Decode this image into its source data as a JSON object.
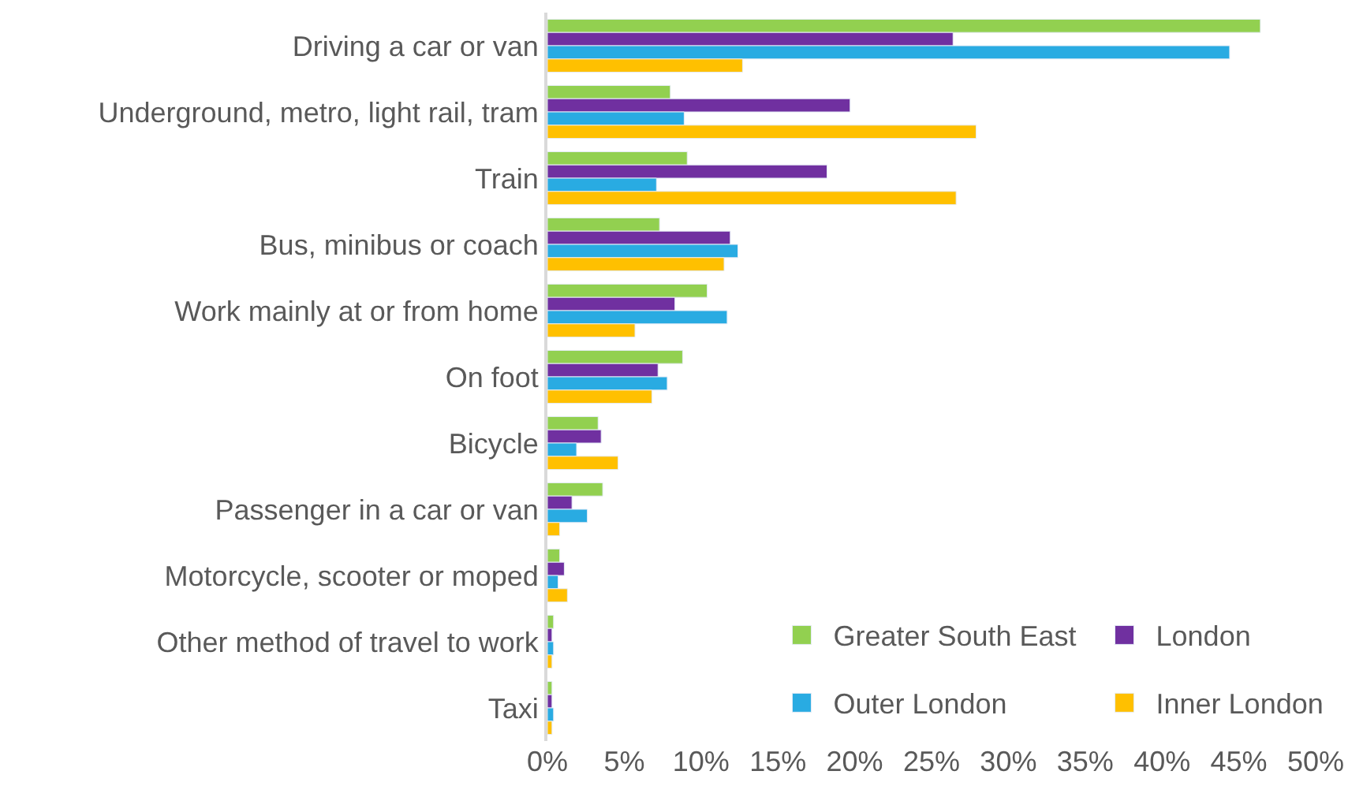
{
  "chart_data": {
    "type": "bar",
    "orientation": "horizontal",
    "categories": [
      "Driving a car or van",
      "Underground, metro, light rail, tram",
      "Train",
      "Bus, minibus or coach",
      "Work mainly at or from home",
      "On foot",
      "Bicycle",
      "Passenger in a car or van",
      "Motorcycle, scooter or moped",
      "Other method of travel to work",
      "Taxi"
    ],
    "series": [
      {
        "name": "Greater South East",
        "color": "#92d050",
        "values": [
          46.4,
          8.0,
          9.1,
          7.3,
          10.4,
          8.8,
          3.3,
          3.6,
          0.8,
          0.4,
          0.3
        ]
      },
      {
        "name": "London",
        "color": "#7030a0",
        "values": [
          26.4,
          19.7,
          18.2,
          11.9,
          8.3,
          7.2,
          3.5,
          1.6,
          1.1,
          0.3,
          0.3
        ]
      },
      {
        "name": "Outer London",
        "color": "#29abe2",
        "values": [
          44.4,
          8.9,
          7.1,
          12.4,
          11.7,
          7.8,
          1.9,
          2.6,
          0.7,
          0.4,
          0.4
        ]
      },
      {
        "name": "Inner London",
        "color": "#ffc000",
        "values": [
          12.7,
          27.9,
          26.6,
          11.5,
          5.7,
          6.8,
          4.6,
          0.8,
          1.3,
          0.3,
          0.3
        ]
      }
    ],
    "xlim": [
      0,
      50
    ],
    "xticks": [
      {
        "value": 0,
        "label": "0%"
      },
      {
        "value": 5,
        "label": "5%"
      },
      {
        "value": 10,
        "label": "10%"
      },
      {
        "value": 15,
        "label": "15%"
      },
      {
        "value": 20,
        "label": "20%"
      },
      {
        "value": 25,
        "label": "25%"
      },
      {
        "value": 30,
        "label": "30%"
      },
      {
        "value": 35,
        "label": "35%"
      },
      {
        "value": 40,
        "label": "40%"
      },
      {
        "value": 45,
        "label": "45%"
      },
      {
        "value": 50,
        "label": "50%"
      }
    ],
    "legend": "bottom right"
  }
}
